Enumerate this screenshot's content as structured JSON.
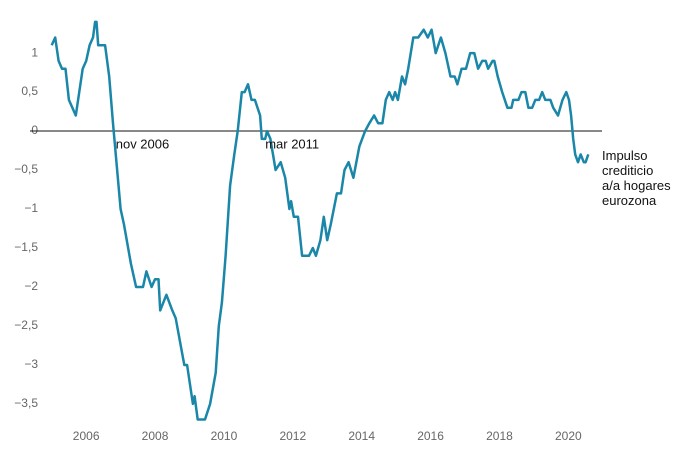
{
  "chart_data": {
    "type": "line",
    "annotations": [
      {
        "text": "nov 2006",
        "x": 2006.83,
        "y": 0
      },
      {
        "text": "mar 2011",
        "x": 2011.17,
        "y": 0
      }
    ],
    "xlim": [
      2004.66,
      2021.5
    ],
    "ylim": [
      -3.77,
      1.45
    ],
    "xticks": [
      2006,
      2008,
      2010,
      2012,
      2014,
      2016,
      2018,
      2020
    ],
    "yticks": [
      1,
      {
        "value": 0.5,
        "label": "0,5"
      },
      0,
      {
        "value": -0.5,
        "label": "−0,5"
      },
      {
        "value": -1,
        "label": "−1"
      },
      {
        "value": -1.5,
        "label": "−1,5"
      },
      {
        "value": -2,
        "label": "−2"
      },
      {
        "value": -2.5,
        "label": "−2,5"
      },
      {
        "value": -3,
        "label": "−3"
      },
      {
        "value": -3.5,
        "label": "−3,5"
      }
    ],
    "x": [
      2005.0,
      2005.1,
      2005.2,
      2005.3,
      2005.4,
      2005.5,
      2005.7,
      2005.9,
      2006.0,
      2006.1,
      2006.2,
      2006.26,
      2006.3,
      2006.35,
      2006.55,
      2006.67,
      2006.78,
      2007.0,
      2007.1,
      2007.3,
      2007.45,
      2007.65,
      2007.75,
      2007.9,
      2008.0,
      2008.1,
      2008.15,
      2008.33,
      2008.5,
      2008.6,
      2008.85,
      2008.93,
      2009.1,
      2009.15,
      2009.24,
      2009.45,
      2009.6,
      2009.76,
      2009.85,
      2009.94,
      2010.05,
      2010.18,
      2010.3,
      2010.4,
      2010.52,
      2010.6,
      2010.7,
      2010.8,
      2010.9,
      2011.05,
      2011.1,
      2011.2,
      2011.25,
      2011.35,
      2011.5,
      2011.65,
      2011.78,
      2011.9,
      2011.95,
      2012.03,
      2012.15,
      2012.27,
      2012.47,
      2012.58,
      2012.67,
      2012.8,
      2012.9,
      2013.0,
      2013.1,
      2013.28,
      2013.4,
      2013.5,
      2013.62,
      2013.76,
      2013.93,
      2014.1,
      2014.22,
      2014.36,
      2014.48,
      2014.6,
      2014.7,
      2014.8,
      2014.9,
      2014.97,
      2015.05,
      2015.17,
      2015.26,
      2015.35,
      2015.5,
      2015.64,
      2015.8,
      2015.92,
      2016.03,
      2016.15,
      2016.3,
      2016.43,
      2016.58,
      2016.7,
      2016.78,
      2016.9,
      2017.03,
      2017.15,
      2017.27,
      2017.38,
      2017.5,
      2017.6,
      2017.67,
      2017.8,
      2017.85,
      2017.95,
      2018.08,
      2018.23,
      2018.35,
      2018.4,
      2018.55,
      2018.64,
      2018.75,
      2018.84,
      2018.95,
      2019.04,
      2019.15,
      2019.24,
      2019.33,
      2019.48,
      2019.56,
      2019.7,
      2019.83,
      2019.94,
      2020.02,
      2020.08,
      2020.14,
      2020.2,
      2020.28,
      2020.36,
      2020.45,
      2020.5,
      2020.58
    ],
    "series": [
      {
        "name": "Impulso crediticio a/a hogares eurozona",
        "color": "#1a86a8",
        "values": [
          1.1,
          1.2,
          0.9,
          0.8,
          0.8,
          0.4,
          0.2,
          0.8,
          0.9,
          1.1,
          1.2,
          1.4,
          1.4,
          1.1,
          1.1,
          0.7,
          0.1,
          -1.0,
          -1.2,
          -1.7,
          -2.0,
          -2.0,
          -1.8,
          -2.0,
          -1.9,
          -1.9,
          -2.3,
          -2.1,
          -2.3,
          -2.4,
          -3.0,
          -3.0,
          -3.5,
          -3.4,
          -3.7,
          -3.7,
          -3.5,
          -3.1,
          -2.5,
          -2.2,
          -1.6,
          -0.7,
          -0.3,
          0.0,
          0.5,
          0.5,
          0.6,
          0.4,
          0.4,
          0.2,
          -0.1,
          -0.1,
          0.0,
          -0.1,
          -0.5,
          -0.4,
          -0.6,
          -1.0,
          -0.9,
          -1.1,
          -1.1,
          -1.6,
          -1.6,
          -1.5,
          -1.6,
          -1.4,
          -1.1,
          -1.4,
          -1.2,
          -0.8,
          -0.8,
          -0.5,
          -0.4,
          -0.6,
          -0.2,
          0.0,
          0.1,
          0.2,
          0.1,
          0.1,
          0.4,
          0.5,
          0.4,
          0.5,
          0.4,
          0.7,
          0.6,
          0.8,
          1.2,
          1.2,
          1.3,
          1.2,
          1.3,
          1.0,
          1.2,
          1.0,
          0.7,
          0.7,
          0.6,
          0.8,
          0.8,
          1.0,
          1.0,
          0.8,
          0.9,
          0.9,
          0.8,
          0.9,
          0.9,
          0.7,
          0.5,
          0.3,
          0.3,
          0.4,
          0.4,
          0.5,
          0.5,
          0.3,
          0.3,
          0.4,
          0.4,
          0.5,
          0.4,
          0.4,
          0.3,
          0.2,
          0.4,
          0.5,
          0.4,
          0.2,
          -0.1,
          -0.3,
          -0.4,
          -0.3,
          -0.4,
          -0.4,
          -0.3
        ]
      }
    ]
  }
}
